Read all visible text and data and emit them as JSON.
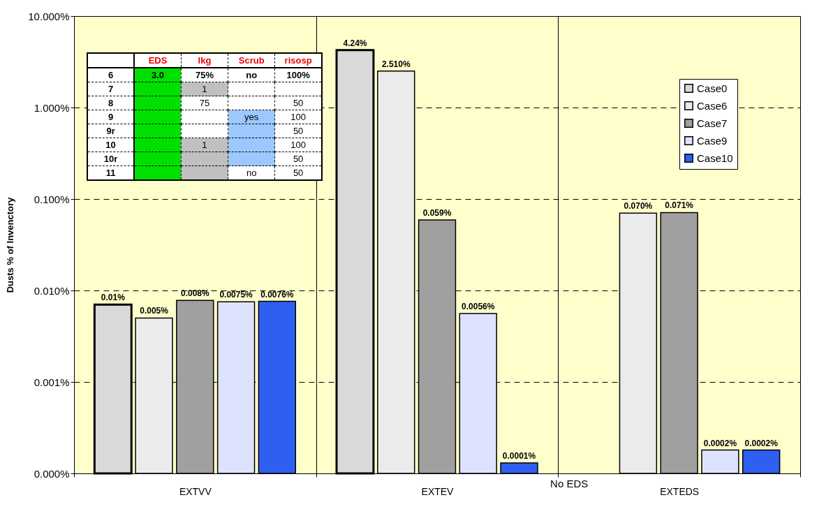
{
  "chart_data": {
    "type": "bar",
    "ylabel": "Dusts % of Invenctory",
    "categories": [
      "EXTVV",
      "EXTEV",
      "EXTEDS"
    ],
    "series": [
      {
        "name": "Case0",
        "color": "#d9d9d9",
        "values": [
          0.007,
          4.24,
          null
        ],
        "value_labels": [
          "0.01%",
          "4.24%",
          null
        ]
      },
      {
        "name": "Case6",
        "color": "#ebebeb",
        "values": [
          0.005,
          2.51,
          0.07
        ],
        "value_labels": [
          "0.005%",
          "2.510%",
          "0.070%"
        ]
      },
      {
        "name": "Case7",
        "color": "#a0a0a0",
        "values": [
          0.0078,
          0.059,
          0.071
        ],
        "value_labels": [
          "0.008%",
          "0.059%",
          "0.071%"
        ]
      },
      {
        "name": "Case9",
        "color": "#dde3ff",
        "values": [
          0.0075,
          0.0056,
          0.00018
        ],
        "value_labels": [
          "0.0075%",
          "0.0056%",
          "0.0002%"
        ]
      },
      {
        "name": "Case10",
        "color": "#2f5ff0",
        "values": [
          0.0076,
          0.00013,
          0.00018
        ],
        "value_labels": [
          "0.0076%",
          "0.0001%",
          "0.0002%"
        ]
      }
    ],
    "log": true,
    "ylim": [
      0.0001,
      10
    ],
    "yticks": [
      {
        "value": 0.0001,
        "label": "0.000%"
      },
      {
        "value": 0.001,
        "label": "0.001%"
      },
      {
        "value": 0.01,
        "label": "0.010%"
      },
      {
        "value": 0.1,
        "label": "0.100%"
      },
      {
        "value": 1,
        "label": "1.000%"
      },
      {
        "value": 10,
        "label": "10.000%"
      }
    ],
    "grid": true,
    "legend": "top right",
    "annotations": [
      "No EDS",
      "EDS",
      "lkg",
      "Scrub",
      "risosp",
      "6",
      "3.0",
      "75%",
      "no",
      "100%",
      "7",
      "1",
      "8",
      "75",
      "50",
      "9",
      "yes",
      "100",
      "9r",
      "50",
      "10",
      "1",
      "100",
      "10r",
      "50",
      "11",
      "no",
      "50"
    ]
  }
}
